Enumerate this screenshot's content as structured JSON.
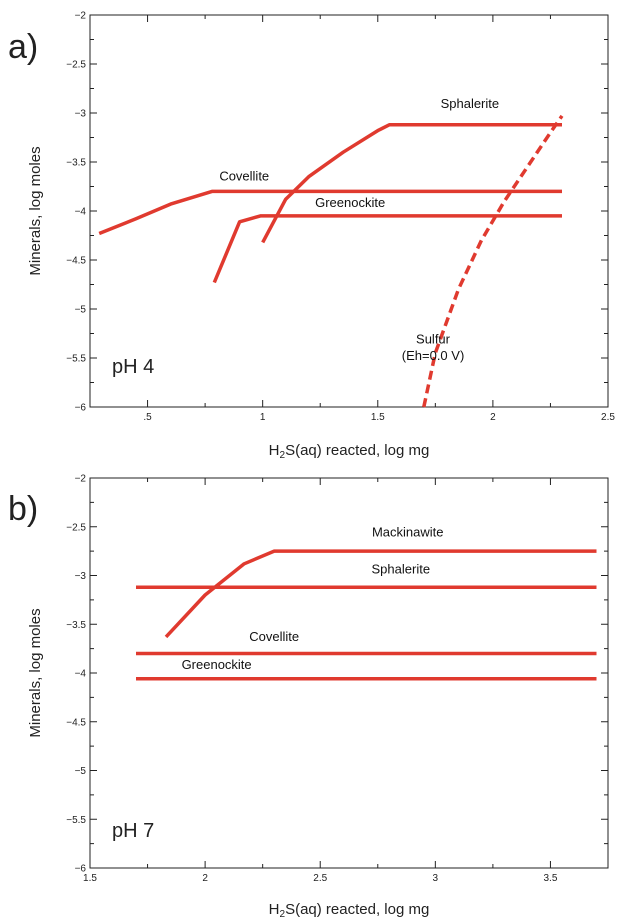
{
  "chart_data": [
    {
      "type": "line",
      "panel_label": "a)",
      "annotation": "pH 4",
      "xlabel_parts": [
        "H",
        "2",
        "S(aq) reacted, log mg"
      ],
      "ylabel": "Minerals, log moles",
      "xlim": [
        0.25,
        2.5
      ],
      "ylim": [
        -6,
        -2
      ],
      "x_ticks": [
        0.5,
        1,
        1.5,
        2,
        2.5
      ],
      "x_tick_labels": [
        ".5",
        "1",
        "1.5",
        "2",
        "2.5"
      ],
      "y_ticks": [
        -2,
        -2.5,
        -3,
        -3.5,
        -4,
        -4.5,
        -5,
        -5.5,
        -6
      ],
      "y_tick_labels": [
        "−2",
        "−2.5",
        "−3",
        "−3.5",
        "−4",
        "−4.5",
        "−5",
        "−5.5",
        "−6"
      ],
      "line_color": "#e03a2f",
      "series": [
        {
          "name": "Covellite",
          "style": "solid",
          "x": [
            0.29,
            0.45,
            0.6,
            0.78,
            2.3
          ],
          "y": [
            -4.23,
            -4.08,
            -3.93,
            -3.8,
            -3.8
          ]
        },
        {
          "name": "Greenockite",
          "style": "solid",
          "x": [
            0.79,
            0.9,
            0.99,
            2.3
          ],
          "y": [
            -4.73,
            -4.11,
            -4.05,
            -4.05
          ]
        },
        {
          "name": "Sphalerite",
          "style": "solid",
          "x": [
            1.0,
            1.1,
            1.2,
            1.35,
            1.5,
            1.55,
            2.3
          ],
          "y": [
            -4.32,
            -3.88,
            -3.65,
            -3.4,
            -3.18,
            -3.12,
            -3.12
          ]
        },
        {
          "name": "Sulfur",
          "style": "dashed",
          "x": [
            1.7,
            1.75,
            1.85,
            1.95,
            2.05,
            2.15,
            2.25,
            2.3
          ],
          "y": [
            -6.0,
            -5.45,
            -4.8,
            -4.3,
            -3.9,
            -3.55,
            -3.2,
            -3.03
          ]
        }
      ],
      "labels": [
        {
          "text": "Sphalerite",
          "x": 1.9,
          "y": -2.95
        },
        {
          "text": "Covellite",
          "x": 0.92,
          "y": -3.69
        },
        {
          "text": "Greenockite",
          "x": 1.38,
          "y": -3.96
        },
        {
          "text": "Sulfur",
          "x": 1.74,
          "y": -5.35
        },
        {
          "text": "(Eh=0.0 V)",
          "x": 1.74,
          "y": -5.52
        }
      ]
    },
    {
      "type": "line",
      "panel_label": "b)",
      "annotation": "pH 7",
      "xlabel_parts": [
        "H",
        "2",
        "S(aq) reacted, log mg"
      ],
      "ylabel": "Minerals, log moles",
      "xlim": [
        1.5,
        3.75
      ],
      "ylim": [
        -6,
        -2
      ],
      "x_ticks": [
        1.5,
        2,
        2.5,
        3,
        3.5
      ],
      "x_tick_labels": [
        "1.5",
        "2",
        "2.5",
        "3",
        "3.5"
      ],
      "y_ticks": [
        -2,
        -2.5,
        -3,
        -3.5,
        -4,
        -4.5,
        -5,
        -5.5,
        -6
      ],
      "y_tick_labels": [
        "−2",
        "−2.5",
        "−3",
        "−3.5",
        "−4",
        "−4.5",
        "−5",
        "−5.5",
        "−6"
      ],
      "line_color": "#e03a2f",
      "series": [
        {
          "name": "Mackinawite",
          "style": "solid",
          "x": [
            1.83,
            2.0,
            2.17,
            2.3,
            3.7
          ],
          "y": [
            -3.63,
            -3.2,
            -2.88,
            -2.75,
            -2.75
          ]
        },
        {
          "name": "Sphalerite",
          "style": "solid",
          "x": [
            1.7,
            3.7
          ],
          "y": [
            -3.12,
            -3.12
          ]
        },
        {
          "name": "Covellite",
          "style": "solid",
          "x": [
            1.7,
            3.7
          ],
          "y": [
            -3.8,
            -3.8
          ]
        },
        {
          "name": "Greenockite",
          "style": "solid",
          "x": [
            1.7,
            3.7
          ],
          "y": [
            -4.06,
            -4.06
          ]
        }
      ],
      "labels": [
        {
          "text": "Mackinawite",
          "x": 2.88,
          "y": -2.6
        },
        {
          "text": "Sphalerite",
          "x": 2.85,
          "y": -2.98
        },
        {
          "text": "Covellite",
          "x": 2.3,
          "y": -3.67
        },
        {
          "text": "Greenockite",
          "x": 2.05,
          "y": -3.96
        }
      ]
    }
  ]
}
